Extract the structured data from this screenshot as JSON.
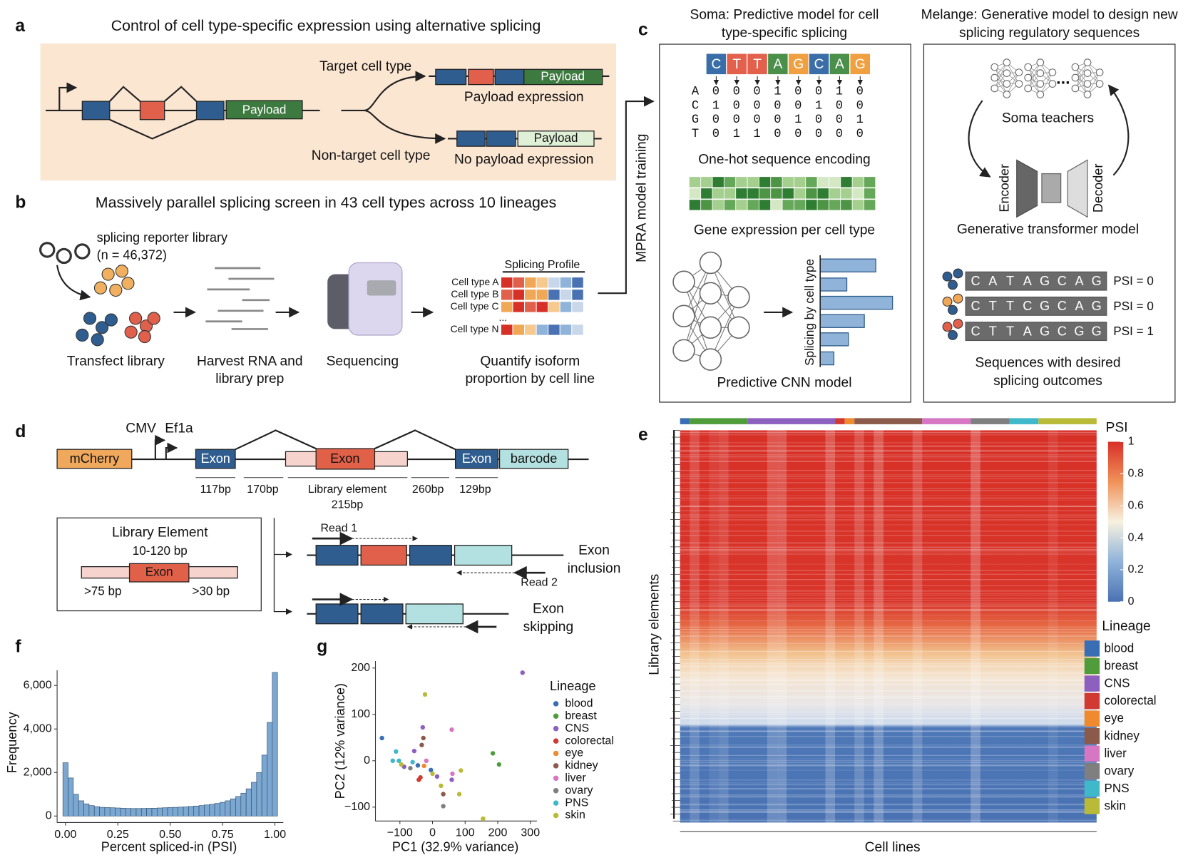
{
  "panel_labels": {
    "a": "a",
    "b": "b",
    "c": "c",
    "d": "d",
    "e": "e",
    "f": "f",
    "g": "g"
  },
  "a": {
    "title": "Control of cell type-specific expression using alternative splicing",
    "target": "Target cell type",
    "nontarget": "Non-target cell type",
    "payload": "Payload",
    "payload_expression": "Payload expression",
    "no_payload_expression": "No payload expression"
  },
  "b": {
    "title": "Massively parallel splicing screen in 43 cell types across 10 lineages",
    "library": "splicing reporter library",
    "library_size": "(n = 46,372)",
    "steps": [
      [
        "Transfect library"
      ],
      [
        "Harvest RNA and",
        "library prep"
      ],
      [
        "Sequencing"
      ],
      [
        "Quantify isoform",
        "proportion by cell line"
      ]
    ],
    "profile_title": "Splicing Profile",
    "profile_rows": [
      "Cell type A",
      "Cell type B",
      "Cell type C",
      "...",
      "Cell type N"
    ],
    "arrow_label": "MPRA model training"
  },
  "c": {
    "soma_title": [
      "Soma: Predictive model for cell",
      "type-specific splicing"
    ],
    "melange_title": [
      "Melange: Generative model to design new",
      "splicing regulatory sequences"
    ],
    "sequence": [
      "C",
      "T",
      "T",
      "A",
      "G",
      "C",
      "A",
      "G"
    ],
    "onehot_rows": [
      {
        "base": "A",
        "bits": [
          0,
          0,
          0,
          1,
          0,
          0,
          1,
          0
        ]
      },
      {
        "base": "C",
        "bits": [
          1,
          0,
          0,
          0,
          0,
          1,
          0,
          0
        ]
      },
      {
        "base": "G",
        "bits": [
          0,
          0,
          0,
          0,
          1,
          0,
          0,
          1
        ]
      },
      {
        "base": "T",
        "bits": [
          0,
          1,
          1,
          0,
          0,
          0,
          0,
          0
        ]
      }
    ],
    "onehot_label": "One-hot sequence encoding",
    "expression_label": "Gene expression per cell type",
    "bar_axis": "Splicing by cell type",
    "cnn_label": "Predictive CNN model",
    "teachers": "Soma teachers",
    "ellipsis": "...",
    "encoder": "Encoder",
    "decoder": "Decoder",
    "transformer_label": "Generative transformer model",
    "designs": [
      {
        "sequence": [
          "C",
          "A",
          "T",
          "A",
          "G",
          "C",
          "A",
          "G"
        ],
        "psi": "PSI = 0"
      },
      {
        "sequence": [
          "C",
          "T",
          "T",
          "C",
          "G",
          "C",
          "A",
          "G"
        ],
        "psi": "PSI = 0"
      },
      {
        "sequence": [
          "C",
          "T",
          "T",
          "A",
          "G",
          "C",
          "G",
          "G"
        ],
        "psi": "PSI = 1"
      }
    ],
    "designs_label": [
      "Sequences with desired",
      "splicing outcomes"
    ]
  },
  "d": {
    "cmv": "CMV",
    "ef1a": "Ef1a",
    "mcherry": "mCherry",
    "exon": "Exon",
    "barcode": "barcode",
    "lengths": [
      "117bp",
      "170bp",
      "260bp",
      "129bp"
    ],
    "library_element": "Library element",
    "library_length": "215bp",
    "box_title": "Library Element",
    "exon_range": "10-120 bp",
    "upstream": ">75 bp",
    "downstream": ">30 bp",
    "read1": "Read 1",
    "read2": "Read 2",
    "inclusion": [
      "Exon",
      "inclusion"
    ],
    "skipping": [
      "Exon",
      "skipping"
    ]
  },
  "chart_data": [
    {
      "type": "heatmap",
      "y_label": "Library elements",
      "x_label": "Cell lines",
      "colorbar_title": "PSI",
      "zlim": [
        0,
        1
      ],
      "zticks": [
        0,
        0.2,
        0.4,
        0.6,
        0.8,
        1
      ],
      "legend_title": "Lineage",
      "lineages": [
        "blood",
        "breast",
        "CNS",
        "colorectal",
        "eye",
        "kidney",
        "liver",
        "ovary",
        "PNS",
        "skin"
      ],
      "colors": [
        "#3a6eb4",
        "#4f9d3a",
        "#8d5fbf",
        "#d13a30",
        "#ef8a2e",
        "#8c5a4a",
        "#d776c3",
        "#7f7f7f",
        "#3fb8c9",
        "#b9ba37"
      ],
      "cell_lines": [
        1,
        6,
        9,
        1,
        1,
        7,
        5,
        4,
        3,
        6
      ]
    },
    {
      "type": "histogram",
      "x_label": "Percent spliced-in (PSI)",
      "y_label": "Frequency",
      "color": "#7ba7d1",
      "bins": [
        -0.0125,
        0.0125,
        0.0375,
        0.0625,
        0.0875,
        0.1125,
        0.1375,
        0.1625,
        0.1875,
        0.2125,
        0.2375,
        0.2625,
        0.2875,
        0.3125,
        0.3375,
        0.3625,
        0.3875,
        0.4125,
        0.4375,
        0.4625,
        0.4875,
        0.5125,
        0.5375,
        0.5625,
        0.5875,
        0.6125,
        0.6375,
        0.6625,
        0.6875,
        0.7125,
        0.7375,
        0.7625,
        0.7875,
        0.8125,
        0.8375,
        0.8625,
        0.8875,
        0.9125,
        0.9375,
        0.9625,
        0.9875,
        1.0125
      ],
      "counts": [
        2450,
        1750,
        1000,
        700,
        560,
        480,
        430,
        400,
        390,
        380,
        370,
        360,
        350,
        345,
        345,
        350,
        355,
        360,
        370,
        380,
        390,
        400,
        410,
        420,
        440,
        460,
        480,
        510,
        540,
        580,
        630,
        700,
        790,
        900,
        1050,
        1250,
        1550,
        2000,
        2800,
        4300,
        6600
      ],
      "xlim": [
        -0.04,
        1.04
      ],
      "ylim": [
        -300,
        6700
      ],
      "xticks": [
        {
          "value": 0,
          "label": "0.00"
        },
        {
          "value": 0.25,
          "label": "0.25"
        },
        {
          "value": 0.5,
          "label": "0.50"
        },
        {
          "value": 0.75,
          "label": "0.75"
        },
        {
          "value": 1,
          "label": "1.00"
        }
      ],
      "yticks": [
        0,
        {
          "value": 2000,
          "label": "2,000"
        },
        {
          "value": 4000,
          "label": "4,000"
        },
        {
          "value": 6000,
          "label": "6,000"
        }
      ]
    },
    {
      "type": "scatter",
      "x_label": "PC1 (32.9% variance)",
      "y_label": "PC2 (12% variance)",
      "legend_title": "Lineage",
      "xlim": [
        -175,
        320
      ],
      "ylim": [
        -130,
        215
      ],
      "xticks": [
        {
          "value": -100,
          "label": "−100"
        },
        0,
        100,
        200,
        300
      ],
      "yticks": [
        {
          "value": -100,
          "label": "−100"
        },
        0,
        100,
        200
      ],
      "series": [
        {
          "name": "blood",
          "color": "#3a6eb4",
          "x": [
            -155,
            -45,
            -5
          ],
          "y": [
            49,
            -10,
            -20
          ]
        },
        {
          "name": "breast",
          "color": "#4f9d3a",
          "x": [
            185,
            204
          ],
          "y": [
            16,
            -8
          ]
        },
        {
          "name": "CNS",
          "color": "#8d5fbf",
          "x": [
            276,
            -30,
            -56,
            59,
            -87,
            14
          ],
          "y": [
            190,
            72,
            21,
            -41,
            -13,
            -34
          ]
        },
        {
          "name": "colorectal",
          "color": "#d13a30",
          "x": [
            -42,
            -37
          ],
          "y": [
            -41,
            -36
          ]
        },
        {
          "name": "eye",
          "color": "#ef8a2e",
          "x": [
            -26
          ],
          "y": [
            -11
          ]
        },
        {
          "name": "kidney",
          "color": "#8c5a4a",
          "x": [
            -28,
            -33,
            33
          ],
          "y": [
            49,
            34,
            -72
          ]
        },
        {
          "name": "liver",
          "color": "#d776c3",
          "x": [
            59,
            61,
            -19
          ],
          "y": [
            67,
            -28,
            0
          ]
        },
        {
          "name": "ovary",
          "color": "#7f7f7f",
          "x": [
            33,
            -68
          ],
          "y": [
            -98,
            -16
          ]
        },
        {
          "name": "PNS",
          "color": "#3fb8c9",
          "x": [
            -112,
            -122,
            -103,
            -61
          ],
          "y": [
            20,
            0,
            0,
            -3
          ]
        },
        {
          "name": "skin",
          "color": "#b9ba37",
          "x": [
            -23,
            155,
            82,
            26,
            0,
            87,
            -96
          ],
          "y": [
            143,
            -125,
            -72,
            -54,
            -28,
            -21,
            -8
          ]
        }
      ]
    }
  ]
}
